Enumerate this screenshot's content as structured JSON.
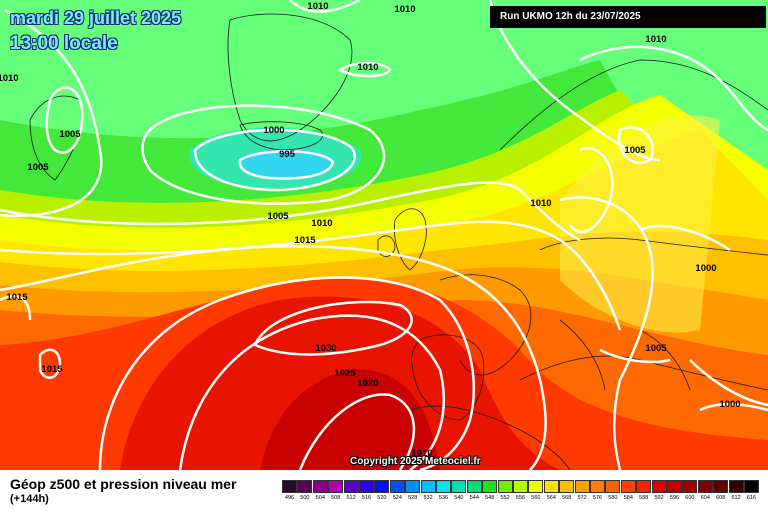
{
  "header": {
    "date_line": "mardi 29 juillet 2025",
    "time_line": "13:00 locale",
    "run_info": "Run UKMO 12h du 23/07/2025"
  },
  "copyright": "Copyright 2025 Meteociel.fr",
  "footer": {
    "title": "Géop z500 et pression niveau mer",
    "subtitle": "(+144h)"
  },
  "legend": {
    "labels": [
      "496",
      "500",
      "504",
      "508",
      "512",
      "516",
      "520",
      "524",
      "528",
      "532",
      "536",
      "540",
      "544",
      "548",
      "552",
      "556",
      "560",
      "564",
      "568",
      "572",
      "576",
      "580",
      "584",
      "588",
      "592",
      "596",
      "600",
      "604",
      "608",
      "612",
      "616"
    ],
    "colors": [
      "#2a0a2a",
      "#5a005a",
      "#8a008a",
      "#b000b0",
      "#5a00c8",
      "#3000e0",
      "#0010ff",
      "#0050ff",
      "#0090ff",
      "#00c0ff",
      "#00e6e6",
      "#00e0b0",
      "#00e070",
      "#20e020",
      "#70f000",
      "#b0ff00",
      "#f0ff00",
      "#ffe000",
      "#ffc000",
      "#ffa000",
      "#ff8000",
      "#ff6000",
      "#ff4000",
      "#ff2000",
      "#e00000",
      "#c00000",
      "#a00000",
      "#800000",
      "#600000",
      "#300000",
      "#000000"
    ]
  },
  "isobar_labels": [
    "1010",
    "1010",
    "1010",
    "1010",
    "1010",
    "1005",
    "1005",
    "1000",
    "995",
    "1005",
    "1010",
    "1015",
    "1010",
    "1005",
    "1000",
    "1015",
    "1015",
    "1030",
    "1025",
    "1020",
    "1005",
    "1000",
    "1010"
  ],
  "icons": [
    "coastline-map"
  ]
}
